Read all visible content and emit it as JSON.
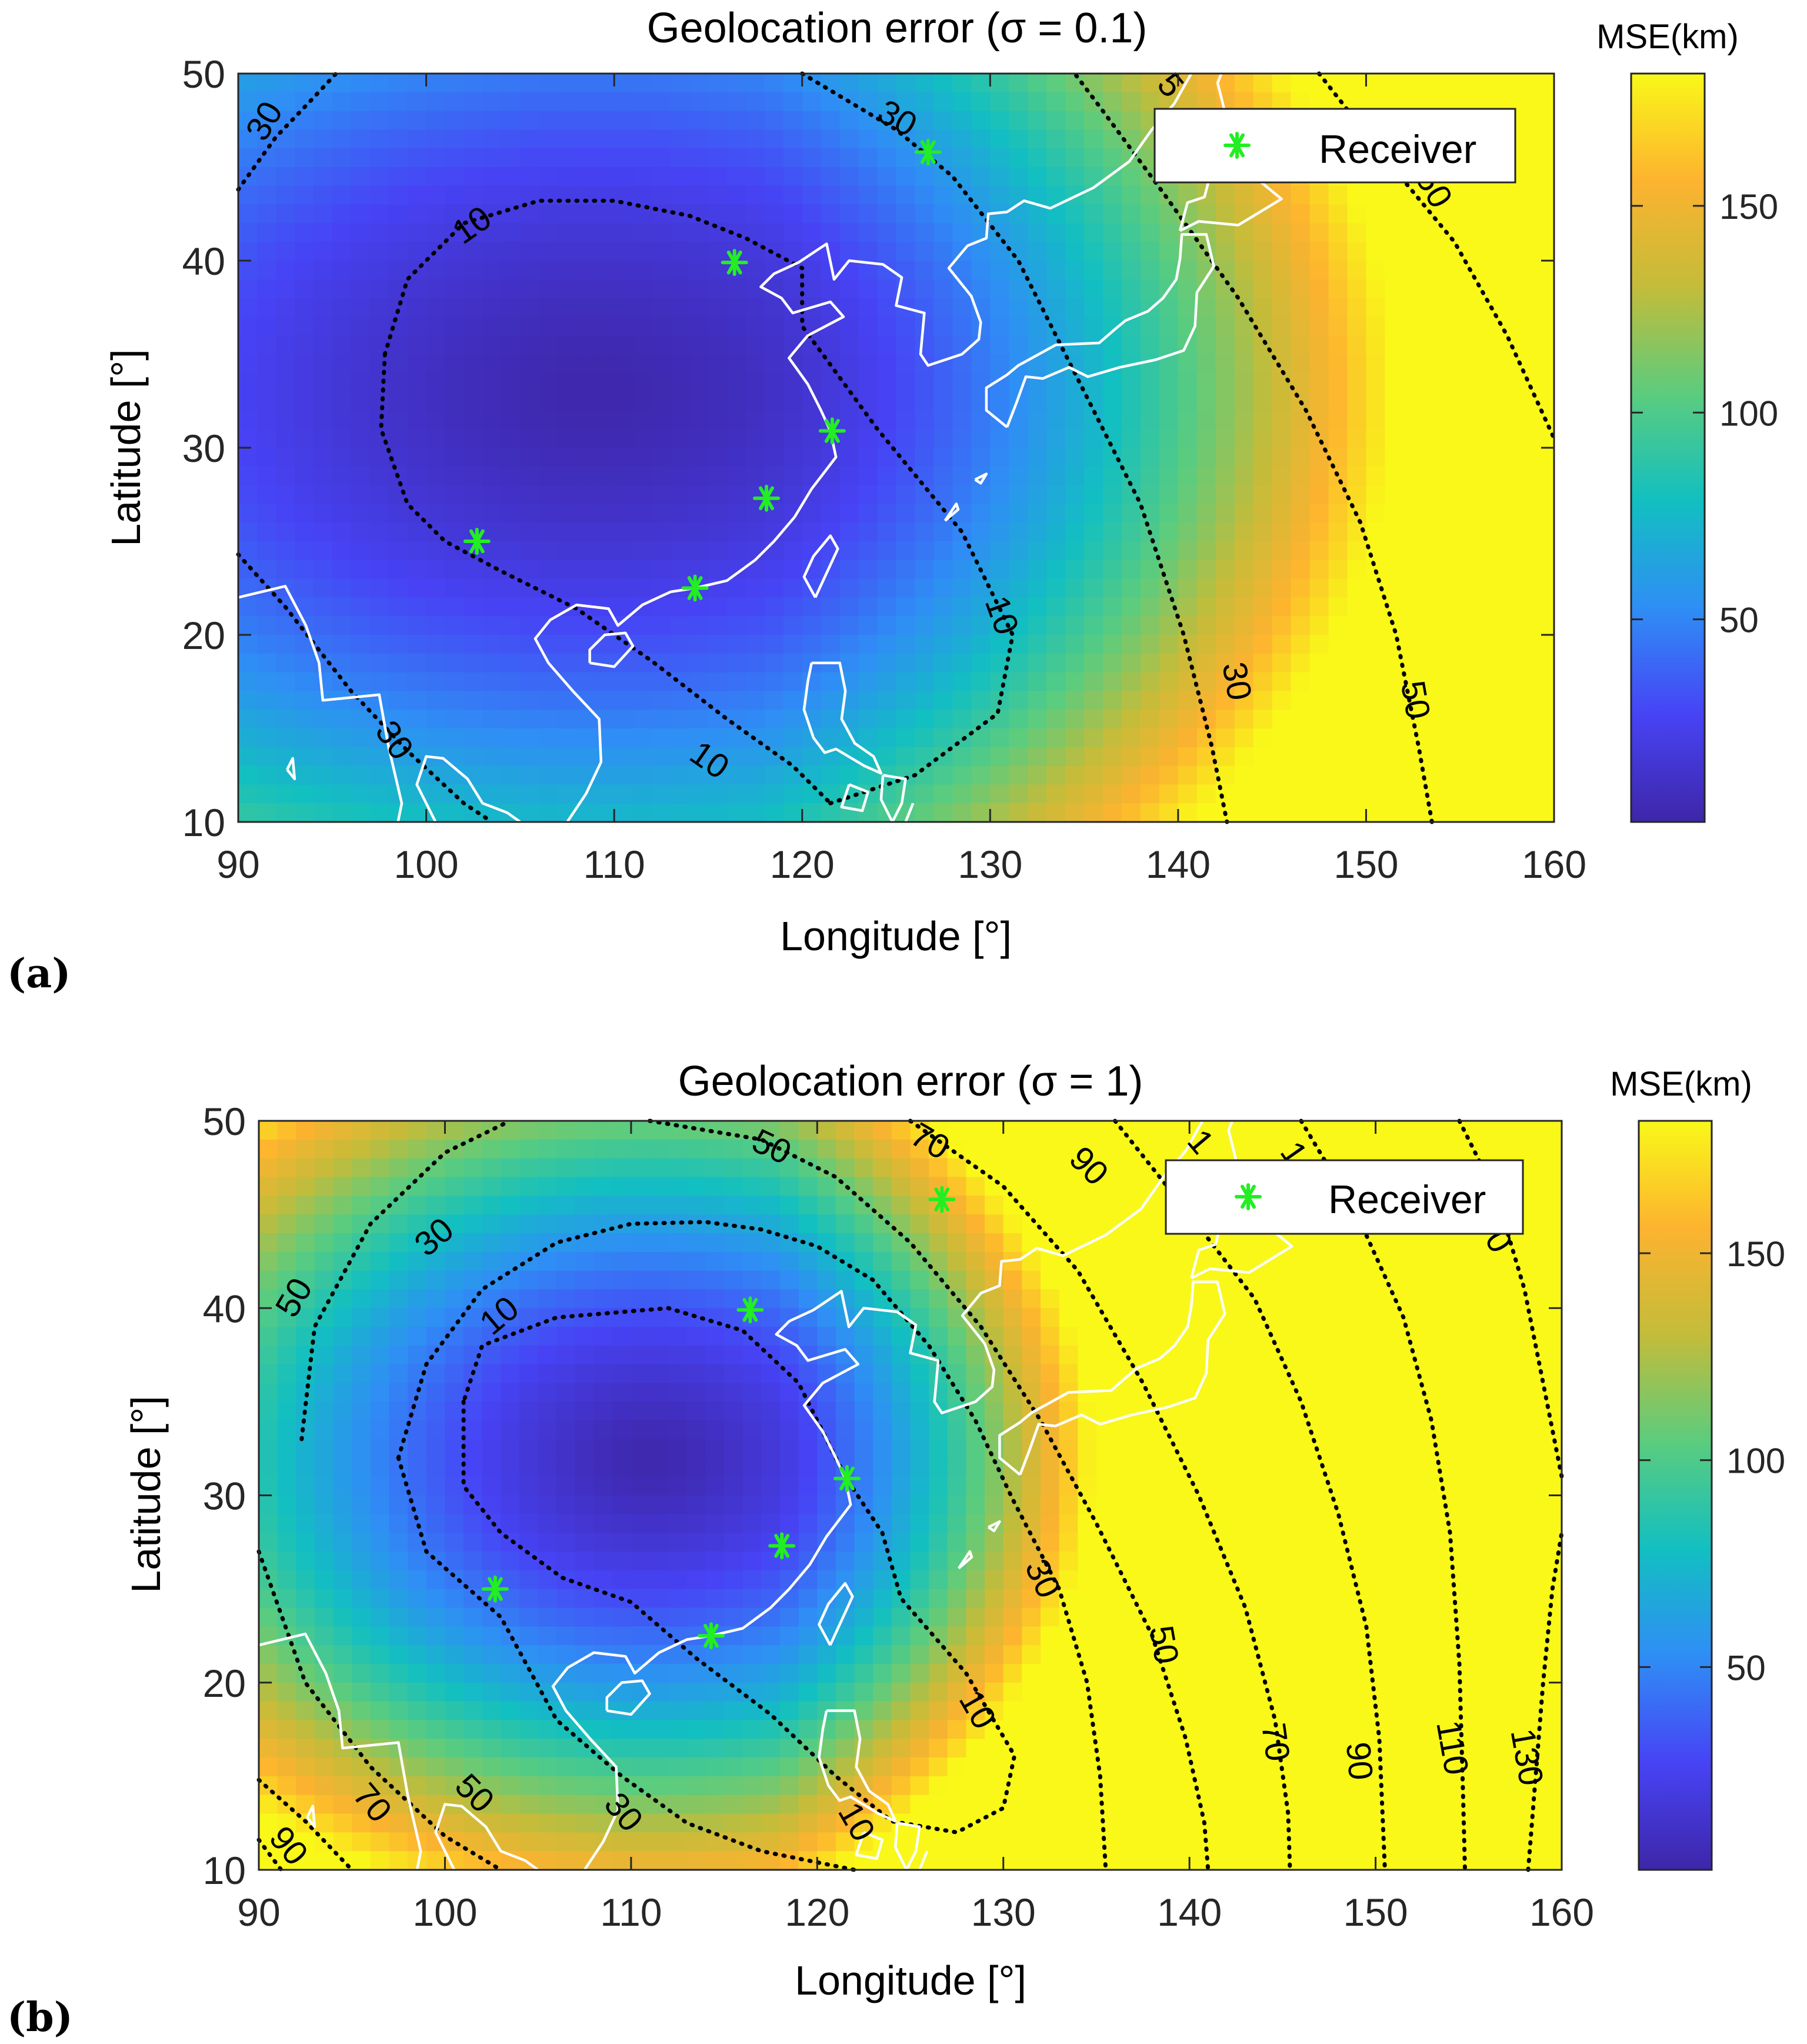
{
  "colorbar_colors": [
    "#3e26a8",
    "#4743f5",
    "#2f8ef5",
    "#12bfc1",
    "#5bcc7e",
    "#c3bc3a",
    "#fdb32f",
    "#f9f819"
  ],
  "land_outline_color": "#ffffff",
  "receiver_color": "#22ee22",
  "chart_data": [
    {
      "panel_label": "(a)",
      "type": "heatmap",
      "title": "Geolocation error (σ = 0.1)",
      "xlabel": "Longitude [°]",
      "ylabel": "Latitude [°]",
      "xlim": [
        90,
        160
      ],
      "ylim": [
        10,
        50
      ],
      "xticks": [
        90,
        100,
        110,
        120,
        130,
        140,
        150,
        160
      ],
      "yticks": [
        10,
        20,
        30,
        40,
        50
      ],
      "colorbar_title": "MSE(km)",
      "colorbar_range": [
        1,
        182
      ],
      "colorbar_ticks": [
        50,
        100,
        150
      ],
      "legend": {
        "label": "Receiver",
        "placement": "top-right"
      },
      "receivers": [
        {
          "lon": 102.7,
          "lat": 25.0
        },
        {
          "lon": 114.3,
          "lat": 22.5
        },
        {
          "lon": 118.1,
          "lat": 27.3
        },
        {
          "lon": 121.6,
          "lat": 30.9
        },
        {
          "lon": 116.4,
          "lat": 39.9
        },
        {
          "lon": 126.7,
          "lat": 45.8
        }
      ],
      "contour_labels": [
        {
          "text": "30",
          "lon": 91.5,
          "lat": 47.4,
          "rotate": -60
        },
        {
          "text": "30",
          "lon": 125.0,
          "lat": 47.5,
          "rotate": 30
        },
        {
          "text": "10",
          "lon": 102.5,
          "lat": 41.8,
          "rotate": -35
        },
        {
          "text": "10",
          "lon": 130.5,
          "lat": 21.0,
          "rotate": 70
        },
        {
          "text": "10",
          "lon": 115.0,
          "lat": 13.2,
          "rotate": 35
        },
        {
          "text": "30",
          "lon": 143.0,
          "lat": 17.5,
          "rotate": 80
        },
        {
          "text": "50",
          "lon": 152.5,
          "lat": 16.5,
          "rotate": 80
        },
        {
          "text": "30",
          "lon": 98.2,
          "lat": 14.3,
          "rotate": 55
        },
        {
          "text": "50",
          "lon": 153.5,
          "lat": 43.8,
          "rotate": 60
        },
        {
          "text": "5",
          "lon": 139.5,
          "lat": 49.3,
          "rotate": 50
        }
      ]
    },
    {
      "panel_label": "(b)",
      "type": "heatmap",
      "title": "Geolocation error (σ = 1)",
      "xlabel": "Longitude [°]",
      "ylabel": "Latitude [°]",
      "xlim": [
        90,
        160
      ],
      "ylim": [
        10,
        50
      ],
      "xticks": [
        90,
        100,
        110,
        120,
        130,
        140,
        150,
        160
      ],
      "yticks": [
        10,
        20,
        30,
        40,
        50
      ],
      "colorbar_title": "MSE(km)",
      "colorbar_range": [
        1,
        182
      ],
      "colorbar_ticks": [
        50,
        100,
        150
      ],
      "legend": {
        "label": "Receiver",
        "placement": "top-right"
      },
      "receivers": [
        {
          "lon": 102.7,
          "lat": 25.0
        },
        {
          "lon": 114.3,
          "lat": 22.5
        },
        {
          "lon": 118.1,
          "lat": 27.3
        },
        {
          "lon": 121.6,
          "lat": 30.9
        },
        {
          "lon": 116.4,
          "lat": 39.9
        },
        {
          "lon": 126.7,
          "lat": 45.8
        }
      ],
      "contour_labels": [
        {
          "text": "50",
          "lon": 117.5,
          "lat": 48.5,
          "rotate": 25
        },
        {
          "text": "70",
          "lon": 126.0,
          "lat": 48.8,
          "rotate": 30
        },
        {
          "text": "90",
          "lon": 134.5,
          "lat": 47.5,
          "rotate": 45
        },
        {
          "text": "30",
          "lon": 99.5,
          "lat": 43.7,
          "rotate": -40
        },
        {
          "text": "50",
          "lon": 92.0,
          "lat": 40.5,
          "rotate": -60
        },
        {
          "text": "10",
          "lon": 103.0,
          "lat": 39.5,
          "rotate": -40
        },
        {
          "text": "30",
          "lon": 132.0,
          "lat": 25.5,
          "rotate": 65
        },
        {
          "text": "10",
          "lon": 128.5,
          "lat": 18.5,
          "rotate": 60
        },
        {
          "text": "50",
          "lon": 138.5,
          "lat": 22.0,
          "rotate": 80
        },
        {
          "text": "70",
          "lon": 144.5,
          "lat": 16.8,
          "rotate": 82
        },
        {
          "text": "90",
          "lon": 149.0,
          "lat": 15.8,
          "rotate": 85
        },
        {
          "text": "110",
          "lon": 154.0,
          "lat": 16.5,
          "rotate": 80
        },
        {
          "text": "130",
          "lon": 158.0,
          "lat": 16.0,
          "rotate": 80
        },
        {
          "text": "50",
          "lon": 101.5,
          "lat": 14.0,
          "rotate": 45
        },
        {
          "text": "30",
          "lon": 109.5,
          "lat": 13.0,
          "rotate": 50
        },
        {
          "text": "70",
          "lon": 96.0,
          "lat": 13.5,
          "rotate": 50
        },
        {
          "text": "90",
          "lon": 91.5,
          "lat": 11.2,
          "rotate": 50
        },
        {
          "text": "10",
          "lon": 122.0,
          "lat": 12.5,
          "rotate": 60
        },
        {
          "text": "1",
          "lon": 140.5,
          "lat": 48.8,
          "rotate": 50
        },
        {
          "text": "1",
          "lon": 145.5,
          "lat": 48.2,
          "rotate": 55
        },
        {
          "text": "0",
          "lon": 156.5,
          "lat": 43.5,
          "rotate": 60
        }
      ]
    }
  ]
}
